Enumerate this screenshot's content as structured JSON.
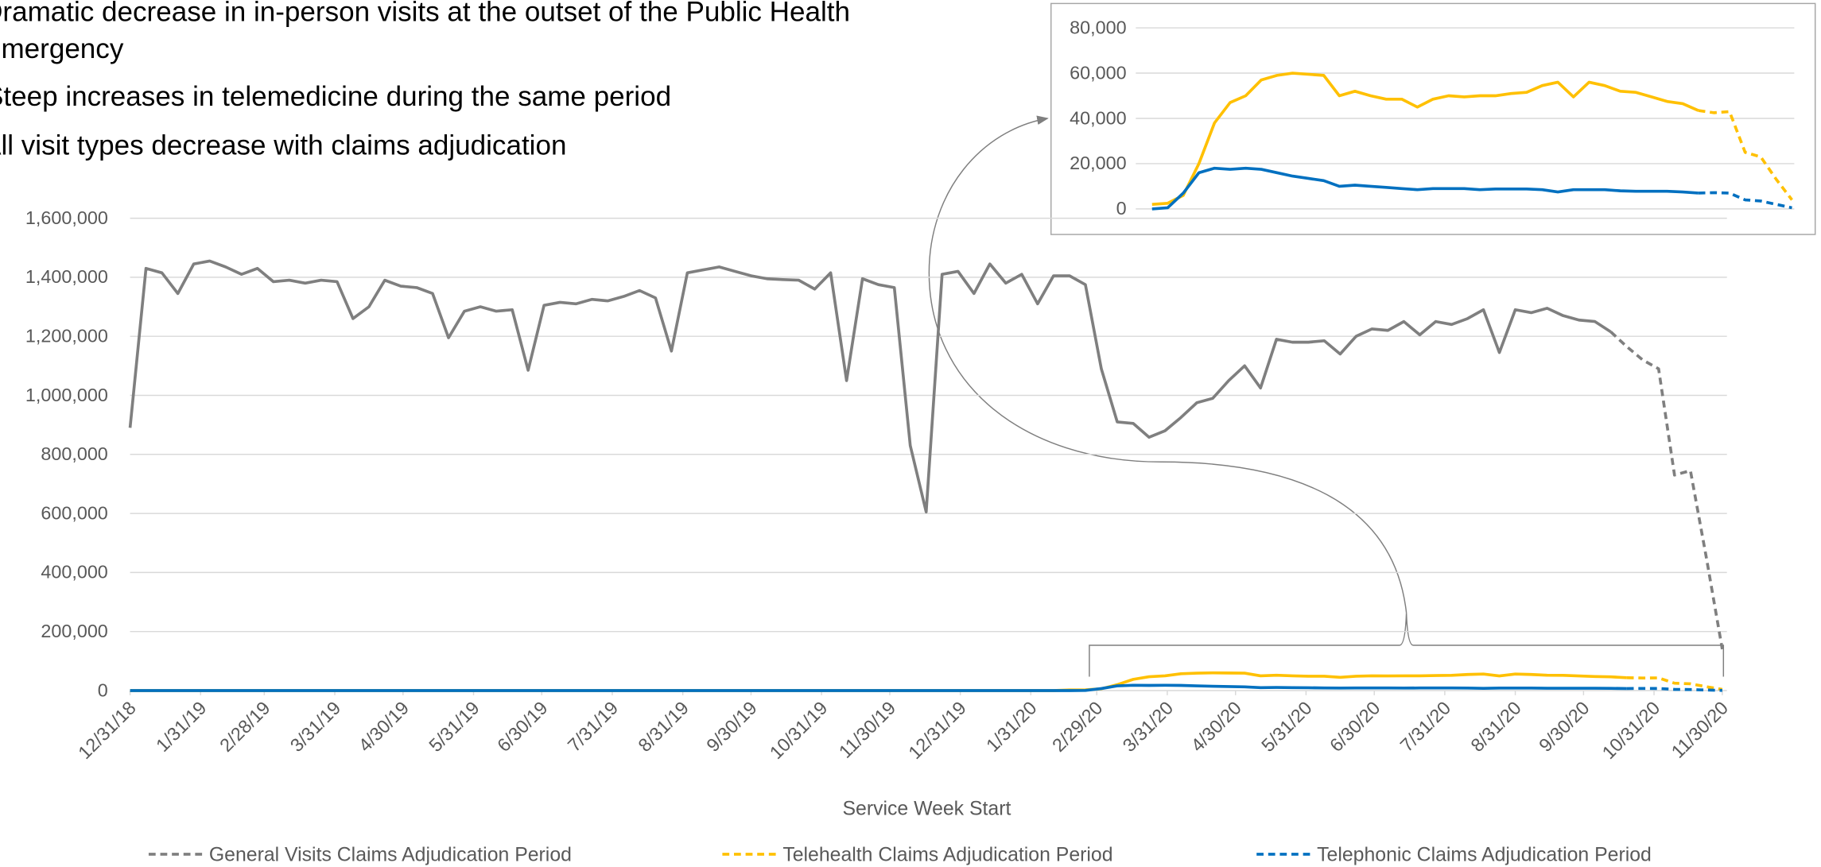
{
  "chart_data": [
    {
      "type": "line",
      "bullets": [
        [
          "Dramatic decrease in in-person visits at the outset of the Public Health",
          "Emergency"
        ],
        [
          "Steep increases in telemedicine during the same period"
        ],
        [
          "All visit types decrease with claims adjudication"
        ]
      ],
      "x_label": "Service Week Start",
      "x": [
        0,
        7,
        14,
        21,
        28,
        35,
        42,
        49,
        56,
        63,
        70,
        77,
        84,
        91,
        98,
        105,
        112,
        119,
        126,
        133,
        140,
        147,
        154,
        161,
        168,
        175,
        182,
        189,
        196,
        203,
        210,
        217,
        224,
        231,
        238,
        245,
        252,
        259,
        266,
        273,
        280,
        287,
        294,
        301,
        308,
        315,
        322,
        329,
        336,
        343,
        350,
        357,
        364,
        371,
        378,
        385,
        392,
        399,
        406,
        413,
        420,
        427,
        434,
        441,
        448,
        455,
        462,
        469,
        476,
        483,
        490,
        497,
        504,
        511,
        518,
        525,
        532,
        539,
        546,
        553,
        560,
        567,
        574,
        581,
        588,
        595,
        602,
        609,
        616,
        623,
        630,
        637,
        644,
        651,
        658,
        665,
        672,
        679,
        686,
        693,
        700
      ],
      "xlim": [
        0,
        700
      ],
      "xticks": [
        {
          "value": 0,
          "label": "12/31/18"
        },
        {
          "value": 31,
          "label": "1/31/19"
        },
        {
          "value": 59,
          "label": "2/28/19"
        },
        {
          "value": 90,
          "label": "3/31/19"
        },
        {
          "value": 120,
          "label": "4/30/19"
        },
        {
          "value": 151,
          "label": "5/31/19"
        },
        {
          "value": 181,
          "label": "6/30/19"
        },
        {
          "value": 212,
          "label": "7/31/19"
        },
        {
          "value": 243,
          "label": "8/31/19"
        },
        {
          "value": 273,
          "label": "9/30/19"
        },
        {
          "value": 304,
          "label": "10/31/19"
        },
        {
          "value": 334,
          "label": "11/30/19"
        },
        {
          "value": 365,
          "label": "12/31/19"
        },
        {
          "value": 396,
          "label": "1/31/20"
        },
        {
          "value": 425,
          "label": "2/29/20"
        },
        {
          "value": 456,
          "label": "3/31/20"
        },
        {
          "value": 486,
          "label": "4/30/20"
        },
        {
          "value": 517,
          "label": "5/31/20"
        },
        {
          "value": 547,
          "label": "6/30/20"
        },
        {
          "value": 578,
          "label": "7/31/20"
        },
        {
          "value": 609,
          "label": "8/31/20"
        },
        {
          "value": 639,
          "label": "9/30/20"
        },
        {
          "value": 670,
          "label": "10/31/20"
        },
        {
          "value": 700,
          "label": "11/30/20"
        }
      ],
      "ylim": [
        0,
        1600000
      ],
      "yticks": [
        0,
        {
          "value": 200000,
          "label": "200,000"
        },
        {
          "value": 400000,
          "label": "400,000"
        },
        {
          "value": 600000,
          "label": "600,000"
        },
        {
          "value": 800000,
          "label": "800,000"
        },
        {
          "value": 1000000,
          "label": "1,000,000"
        },
        {
          "value": 1200000,
          "label": "1,200,000"
        },
        {
          "value": 1400000,
          "label": "1,400,000"
        },
        {
          "value": 1600000,
          "label": "1,600,000"
        }
      ],
      "grid": true,
      "series": [
        {
          "name": "General Visits Claims Adjudication Period",
          "color": "#7f7f7f",
          "dashed_from": 93,
          "values": [
            890000,
            1430000,
            1415000,
            1345000,
            1445000,
            1455000,
            1435000,
            1410000,
            1430000,
            1385000,
            1390000,
            1380000,
            1390000,
            1385000,
            1260000,
            1300000,
            1390000,
            1370000,
            1365000,
            1345000,
            1195000,
            1285000,
            1300000,
            1285000,
            1290000,
            1085000,
            1305000,
            1315000,
            1310000,
            1325000,
            1320000,
            1335000,
            1355000,
            1330000,
            1150000,
            1415000,
            1425000,
            1435000,
            1420000,
            1405000,
            1395000,
            1392000,
            1390000,
            1360000,
            1415000,
            1050000,
            1395000,
            1375000,
            1365000,
            830000,
            605000,
            1410000,
            1420000,
            1345000,
            1445000,
            1380000,
            1410000,
            1310000,
            1405000,
            1405000,
            1375000,
            1090000,
            910000,
            905000,
            858000,
            880000,
            925000,
            975000,
            990000,
            1050000,
            1100000,
            1025000,
            1190000,
            1180000,
            1180000,
            1185000,
            1140000,
            1200000,
            1225000,
            1220000,
            1250000,
            1205000,
            1250000,
            1240000,
            1260000,
            1290000,
            1145000,
            1290000,
            1280000,
            1295000,
            1270000,
            1255000,
            1250000,
            1215000,
            1165000,
            1120000,
            1090000,
            730000,
            745000,
            450000,
            140000
          ]
        },
        {
          "name": "Telehealth Claims Adjudication Period",
          "color": "#ffc000",
          "dashed_from": 94,
          "values": [
            0,
            0,
            0,
            0,
            0,
            0,
            0,
            0,
            0,
            0,
            0,
            0,
            0,
            0,
            0,
            0,
            0,
            0,
            0,
            0,
            0,
            0,
            0,
            0,
            0,
            0,
            0,
            0,
            0,
            0,
            0,
            0,
            0,
            0,
            0,
            0,
            0,
            0,
            0,
            0,
            0,
            0,
            0,
            0,
            0,
            0,
            0,
            0,
            0,
            0,
            0,
            0,
            0,
            0,
            0,
            0,
            0,
            0,
            0,
            2000,
            2500,
            6000,
            20000,
            38000,
            47000,
            50000,
            57000,
            59000,
            60000,
            59500,
            59000,
            50000,
            52000,
            50000,
            48500,
            48500,
            45000,
            48500,
            50000,
            49500,
            50000,
            50000,
            51000,
            51500,
            54500,
            56000,
            49500,
            56000,
            54500,
            52000,
            51500,
            49500,
            47500,
            46500,
            43500,
            42500,
            43000,
            25000,
            23000,
            13000,
            4000
          ]
        },
        {
          "name": "Telephonic Claims Adjudication Period",
          "color": "#0070c0",
          "dashed_from": 94,
          "values": [
            0,
            0,
            0,
            0,
            0,
            0,
            0,
            0,
            0,
            0,
            0,
            0,
            0,
            0,
            0,
            0,
            0,
            0,
            0,
            0,
            0,
            0,
            0,
            0,
            0,
            0,
            0,
            0,
            0,
            0,
            0,
            0,
            0,
            0,
            0,
            0,
            0,
            0,
            0,
            0,
            0,
            0,
            0,
            0,
            0,
            0,
            0,
            0,
            0,
            0,
            0,
            0,
            0,
            0,
            0,
            0,
            0,
            0,
            0,
            0,
            500,
            7000,
            16000,
            18000,
            17500,
            18000,
            17500,
            16000,
            14500,
            13500,
            12500,
            10000,
            10500,
            10000,
            9500,
            9000,
            8500,
            9000,
            9000,
            9000,
            8500,
            8800,
            8800,
            8800,
            8500,
            7500,
            8500,
            8500,
            8500,
            8000,
            7800,
            7800,
            7800,
            7500,
            7000,
            7200,
            7000,
            4000,
            3500,
            2000,
            500
          ]
        }
      ]
    },
    {
      "type": "line",
      "ylim": [
        0,
        80000
      ],
      "yticks": [
        0,
        {
          "value": 20000,
          "label": "20,000"
        },
        {
          "value": 40000,
          "label": "40,000"
        },
        {
          "value": 60000,
          "label": "60,000"
        },
        {
          "value": 80000,
          "label": "80,000"
        }
      ],
      "grid": true,
      "series": [
        {
          "color": "#ffc000",
          "dashed_from": 35,
          "values": [
            2000,
            2500,
            6000,
            20000,
            38000,
            47000,
            50000,
            57000,
            59000,
            60000,
            59500,
            59000,
            50000,
            52000,
            50000,
            48500,
            48500,
            45000,
            48500,
            50000,
            49500,
            50000,
            50000,
            51000,
            51500,
            54500,
            56000,
            49500,
            56000,
            54500,
            52000,
            51500,
            49500,
            47500,
            46500,
            43500,
            42500,
            43000,
            25000,
            23000,
            13000,
            4000
          ]
        },
        {
          "color": "#0070c0",
          "dashed_from": 35,
          "values": [
            0,
            500,
            7000,
            16000,
            18000,
            17500,
            18000,
            17500,
            16000,
            14500,
            13500,
            12500,
            10000,
            10500,
            10000,
            9500,
            9000,
            8500,
            9000,
            9000,
            9000,
            8500,
            8800,
            8800,
            8800,
            8500,
            7500,
            8500,
            8500,
            8500,
            8000,
            7800,
            7800,
            7800,
            7500,
            7000,
            7200,
            7000,
            4000,
            3500,
            2000,
            500
          ]
        }
      ]
    }
  ]
}
